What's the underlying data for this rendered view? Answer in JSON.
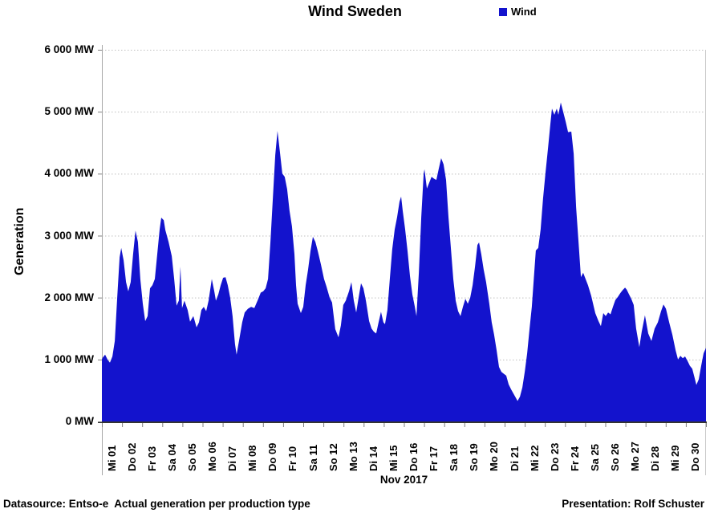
{
  "chart_data": {
    "type": "area",
    "title": "Wind Sweden",
    "legend": [
      {
        "label": "Wind",
        "color": "#1313CD"
      }
    ],
    "y_axis": {
      "title": "Generation",
      "min": 0,
      "max": 6000,
      "grid": true,
      "ticks": [
        {
          "value": 6000,
          "label": "6 000 MW"
        },
        {
          "value": 5000,
          "label": "5 000 MW"
        },
        {
          "value": 4000,
          "label": "4 000 MW"
        },
        {
          "value": 3000,
          "label": "3 000 MW"
        },
        {
          "value": 2000,
          "label": "2 000 MW"
        },
        {
          "value": 1000,
          "label": "1 000 MW"
        },
        {
          "value": 0,
          "label": "0 MW"
        }
      ]
    },
    "x_axis": {
      "title": "Nov 2017",
      "min_day": 0,
      "max_day": 30,
      "categories": [
        "Mi 01",
        "Do 02",
        "Fr 03",
        "Sa 04",
        "So 05",
        "Mo 06",
        "Di 07",
        "Mi 08",
        "Do 09",
        "Fr 10",
        "Sa 11",
        "So 12",
        "Mo 13",
        "Di 14",
        "Mi 15",
        "Do 16",
        "Fr 17",
        "Sa 18",
        "So 19",
        "Mo 20",
        "Di 21",
        "Mi 22",
        "Do 23",
        "Fr 24",
        "Sa 25",
        "So 26",
        "Mo 27",
        "Di 28",
        "Mi 29",
        "Do 30"
      ]
    },
    "series": [
      {
        "name": "Wind",
        "color": "#1313CD",
        "points_format": "[days_since_Nov1_00h, MW]",
        "points": [
          [
            0.0,
            1000
          ],
          [
            0.04,
            1030
          ],
          [
            0.16,
            1080
          ],
          [
            0.28,
            1000
          ],
          [
            0.4,
            950
          ],
          [
            0.52,
            1050
          ],
          [
            0.64,
            1300
          ],
          [
            0.76,
            2000
          ],
          [
            0.88,
            2650
          ],
          [
            0.96,
            2800
          ],
          [
            1.08,
            2600
          ],
          [
            1.2,
            2250
          ],
          [
            1.31,
            2100
          ],
          [
            1.43,
            2250
          ],
          [
            1.55,
            2700
          ],
          [
            1.67,
            3080
          ],
          [
            1.79,
            2900
          ],
          [
            1.91,
            2300
          ],
          [
            2.03,
            1900
          ],
          [
            2.15,
            1620
          ],
          [
            2.27,
            1700
          ],
          [
            2.39,
            2150
          ],
          [
            2.51,
            2200
          ],
          [
            2.63,
            2300
          ],
          [
            2.75,
            2700
          ],
          [
            2.87,
            3100
          ],
          [
            2.95,
            3290
          ],
          [
            3.07,
            3250
          ],
          [
            3.15,
            3090
          ],
          [
            3.31,
            2900
          ],
          [
            3.47,
            2670
          ],
          [
            3.59,
            2300
          ],
          [
            3.71,
            1870
          ],
          [
            3.82,
            1950
          ],
          [
            3.9,
            2500
          ],
          [
            3.98,
            1830
          ],
          [
            4.1,
            1950
          ],
          [
            4.26,
            1800
          ],
          [
            4.38,
            1610
          ],
          [
            4.54,
            1700
          ],
          [
            4.7,
            1520
          ],
          [
            4.82,
            1600
          ],
          [
            4.94,
            1800
          ],
          [
            5.06,
            1850
          ],
          [
            5.18,
            1780
          ],
          [
            5.3,
            1950
          ],
          [
            5.46,
            2300
          ],
          [
            5.58,
            2100
          ],
          [
            5.66,
            1950
          ],
          [
            5.78,
            2050
          ],
          [
            5.9,
            2200
          ],
          [
            6.02,
            2320
          ],
          [
            6.14,
            2330
          ],
          [
            6.25,
            2200
          ],
          [
            6.37,
            2000
          ],
          [
            6.49,
            1700
          ],
          [
            6.61,
            1250
          ],
          [
            6.69,
            1080
          ],
          [
            6.81,
            1300
          ],
          [
            6.97,
            1600
          ],
          [
            7.09,
            1760
          ],
          [
            7.25,
            1820
          ],
          [
            7.41,
            1850
          ],
          [
            7.57,
            1830
          ],
          [
            7.73,
            1950
          ],
          [
            7.89,
            2080
          ],
          [
            8.01,
            2100
          ],
          [
            8.13,
            2150
          ],
          [
            8.25,
            2300
          ],
          [
            8.37,
            2900
          ],
          [
            8.49,
            3600
          ],
          [
            8.61,
            4300
          ],
          [
            8.72,
            4690
          ],
          [
            8.84,
            4350
          ],
          [
            8.96,
            4000
          ],
          [
            9.08,
            3950
          ],
          [
            9.2,
            3750
          ],
          [
            9.32,
            3400
          ],
          [
            9.44,
            3150
          ],
          [
            9.56,
            2700
          ],
          [
            9.64,
            2200
          ],
          [
            9.72,
            1900
          ],
          [
            9.88,
            1750
          ],
          [
            10.0,
            1850
          ],
          [
            10.12,
            2200
          ],
          [
            10.24,
            2450
          ],
          [
            10.36,
            2750
          ],
          [
            10.48,
            2980
          ],
          [
            10.6,
            2900
          ],
          [
            10.72,
            2750
          ],
          [
            10.88,
            2530
          ],
          [
            11.03,
            2300
          ],
          [
            11.15,
            2180
          ],
          [
            11.31,
            2000
          ],
          [
            11.43,
            1920
          ],
          [
            11.59,
            1490
          ],
          [
            11.75,
            1360
          ],
          [
            11.87,
            1550
          ],
          [
            11.99,
            1880
          ],
          [
            12.11,
            1950
          ],
          [
            12.27,
            2100
          ],
          [
            12.39,
            2250
          ],
          [
            12.51,
            1950
          ],
          [
            12.63,
            1760
          ],
          [
            12.75,
            2000
          ],
          [
            12.87,
            2230
          ],
          [
            12.99,
            2150
          ],
          [
            13.11,
            1950
          ],
          [
            13.27,
            1620
          ],
          [
            13.39,
            1500
          ],
          [
            13.5,
            1450
          ],
          [
            13.62,
            1420
          ],
          [
            13.74,
            1600
          ],
          [
            13.86,
            1770
          ],
          [
            13.98,
            1600
          ],
          [
            14.06,
            1570
          ],
          [
            14.18,
            1800
          ],
          [
            14.3,
            2300
          ],
          [
            14.42,
            2780
          ],
          [
            14.54,
            3100
          ],
          [
            14.66,
            3300
          ],
          [
            14.78,
            3550
          ],
          [
            14.86,
            3630
          ],
          [
            14.94,
            3400
          ],
          [
            15.06,
            3100
          ],
          [
            15.18,
            2750
          ],
          [
            15.3,
            2350
          ],
          [
            15.42,
            2050
          ],
          [
            15.54,
            1850
          ],
          [
            15.62,
            1700
          ],
          [
            15.74,
            2400
          ],
          [
            15.86,
            3300
          ],
          [
            15.98,
            4000
          ],
          [
            16.02,
            4070
          ],
          [
            16.14,
            3760
          ],
          [
            16.25,
            3850
          ],
          [
            16.37,
            3950
          ],
          [
            16.49,
            3920
          ],
          [
            16.61,
            3900
          ],
          [
            16.73,
            4080
          ],
          [
            16.85,
            4250
          ],
          [
            16.97,
            4150
          ],
          [
            17.09,
            3900
          ],
          [
            17.21,
            3300
          ],
          [
            17.33,
            2800
          ],
          [
            17.45,
            2300
          ],
          [
            17.57,
            1950
          ],
          [
            17.69,
            1780
          ],
          [
            17.81,
            1700
          ],
          [
            17.93,
            1850
          ],
          [
            18.05,
            1980
          ],
          [
            18.17,
            1900
          ],
          [
            18.29,
            2000
          ],
          [
            18.41,
            2200
          ],
          [
            18.53,
            2500
          ],
          [
            18.65,
            2850
          ],
          [
            18.73,
            2890
          ],
          [
            18.84,
            2700
          ],
          [
            18.96,
            2450
          ],
          [
            19.08,
            2250
          ],
          [
            19.24,
            1900
          ],
          [
            19.36,
            1600
          ],
          [
            19.48,
            1400
          ],
          [
            19.6,
            1150
          ],
          [
            19.72,
            880
          ],
          [
            19.84,
            800
          ],
          [
            19.96,
            770
          ],
          [
            20.08,
            740
          ],
          [
            20.2,
            600
          ],
          [
            20.32,
            520
          ],
          [
            20.44,
            450
          ],
          [
            20.56,
            380
          ],
          [
            20.64,
            330
          ],
          [
            20.76,
            400
          ],
          [
            20.88,
            550
          ],
          [
            21.0,
            800
          ],
          [
            21.12,
            1100
          ],
          [
            21.24,
            1500
          ],
          [
            21.35,
            1850
          ],
          [
            21.47,
            2400
          ],
          [
            21.55,
            2760
          ],
          [
            21.67,
            2800
          ],
          [
            21.79,
            3100
          ],
          [
            21.91,
            3600
          ],
          [
            22.03,
            4020
          ],
          [
            22.15,
            4400
          ],
          [
            22.27,
            4800
          ],
          [
            22.35,
            5050
          ],
          [
            22.47,
            4950
          ],
          [
            22.59,
            5050
          ],
          [
            22.67,
            4950
          ],
          [
            22.79,
            5150
          ],
          [
            22.91,
            5000
          ],
          [
            23.03,
            4840
          ],
          [
            23.15,
            4670
          ],
          [
            23.31,
            4680
          ],
          [
            23.43,
            4320
          ],
          [
            23.55,
            3460
          ],
          [
            23.67,
            2900
          ],
          [
            23.79,
            2330
          ],
          [
            23.9,
            2400
          ],
          [
            24.02,
            2300
          ],
          [
            24.14,
            2200
          ],
          [
            24.3,
            2030
          ],
          [
            24.5,
            1750
          ],
          [
            24.66,
            1620
          ],
          [
            24.78,
            1540
          ],
          [
            24.9,
            1750
          ],
          [
            25.02,
            1700
          ],
          [
            25.14,
            1760
          ],
          [
            25.26,
            1730
          ],
          [
            25.38,
            1850
          ],
          [
            25.5,
            1960
          ],
          [
            25.62,
            2010
          ],
          [
            25.74,
            2070
          ],
          [
            25.86,
            2120
          ],
          [
            25.98,
            2160
          ],
          [
            26.06,
            2130
          ],
          [
            26.18,
            2050
          ],
          [
            26.29,
            1980
          ],
          [
            26.41,
            1880
          ],
          [
            26.53,
            1500
          ],
          [
            26.69,
            1200
          ],
          [
            26.81,
            1450
          ],
          [
            26.97,
            1715
          ],
          [
            27.13,
            1420
          ],
          [
            27.29,
            1300
          ],
          [
            27.45,
            1500
          ],
          [
            27.61,
            1600
          ],
          [
            27.77,
            1780
          ],
          [
            27.89,
            1890
          ],
          [
            28.01,
            1820
          ],
          [
            28.17,
            1600
          ],
          [
            28.33,
            1400
          ],
          [
            28.49,
            1150
          ],
          [
            28.61,
            1000
          ],
          [
            28.73,
            1060
          ],
          [
            28.85,
            1020
          ],
          [
            28.96,
            1050
          ],
          [
            29.08,
            980
          ],
          [
            29.2,
            900
          ],
          [
            29.32,
            850
          ],
          [
            29.44,
            700
          ],
          [
            29.52,
            590
          ],
          [
            29.64,
            680
          ],
          [
            29.76,
            900
          ],
          [
            29.88,
            1100
          ],
          [
            30.0,
            1190
          ]
        ]
      }
    ]
  },
  "footer": {
    "left": "Datasource: Entso-e  Actual generation per production type",
    "right": "Presentation: Rolf Schuster"
  }
}
